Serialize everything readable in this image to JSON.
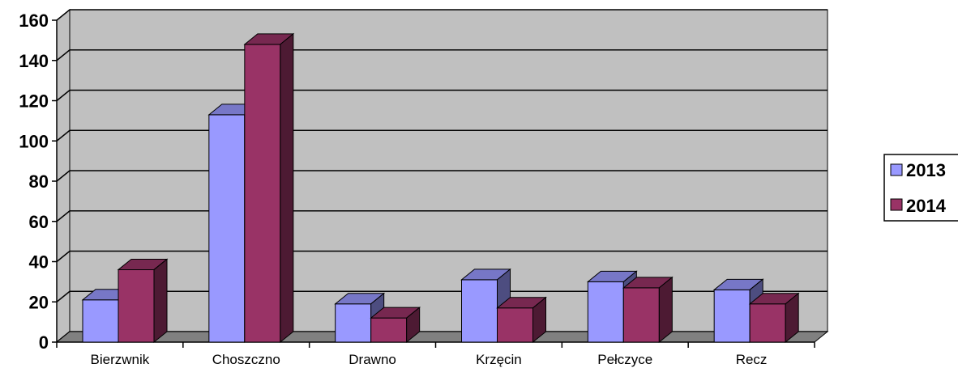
{
  "chart_data": {
    "type": "bar",
    "categories": [
      "Bierzwnik",
      "Choszczno",
      "Drawno",
      "Krzęcin",
      "Pełczyce",
      "Recz"
    ],
    "series": [
      {
        "name": "2013",
        "values": [
          21,
          113,
          19,
          31,
          30,
          26
        ],
        "color": "#9999ff"
      },
      {
        "name": "2014",
        "values": [
          36,
          148,
          12,
          17,
          27,
          19
        ],
        "color": "#993366"
      }
    ],
    "title": "",
    "xlabel": "",
    "ylabel": "",
    "ylim": [
      0,
      160
    ],
    "yticks": [
      "0",
      "20",
      "40",
      "60",
      "80",
      "100",
      "120",
      "140",
      "160"
    ],
    "grid": true,
    "legend": "right",
    "style": "3d-clustered-column",
    "wall_color": "#c0c0c0",
    "floor_color": "#808080"
  }
}
